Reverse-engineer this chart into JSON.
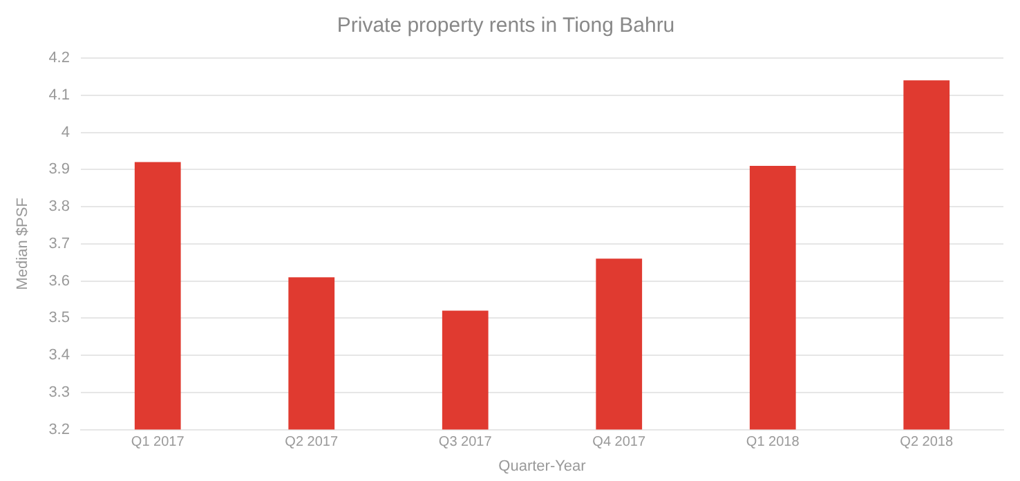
{
  "chart_data": {
    "type": "bar",
    "title": "Private property rents in Tiong Bahru",
    "xlabel": "Quarter-Year",
    "ylabel": "Median $PSF",
    "categories": [
      "Q1 2017",
      "Q2 2017",
      "Q3 2017",
      "Q4 2017",
      "Q1 2018",
      "Q2 2018"
    ],
    "values": [
      3.92,
      3.61,
      3.52,
      3.66,
      3.91,
      4.14
    ],
    "color": "#e03a30",
    "ylim": [
      3.2,
      4.2
    ],
    "yticks": [
      3.2,
      3.3,
      3.4,
      3.5,
      3.6,
      3.7,
      3.8,
      3.9,
      4,
      4.1,
      4.2
    ],
    "grid": "y",
    "legend": false
  }
}
